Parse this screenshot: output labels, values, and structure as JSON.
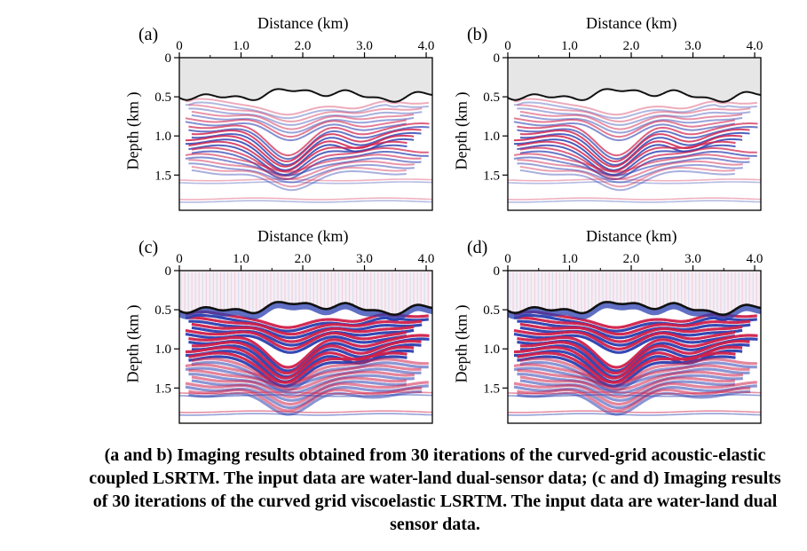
{
  "panels": [
    {
      "label": "(a)",
      "xlabel": "Distance (km)",
      "ylabel": "Depth (km )",
      "style": "acoustic"
    },
    {
      "label": "(b)",
      "xlabel": "Distance (km)",
      "ylabel": "Depth (km )",
      "style": "acoustic"
    },
    {
      "label": "(c)",
      "xlabel": "Distance (km)",
      "ylabel": "Depth (km )",
      "style": "visco"
    },
    {
      "label": "(d)",
      "xlabel": "Distance (km)",
      "ylabel": "Depth (km )",
      "style": "visco"
    }
  ],
  "xticks": [
    "0",
    "1.0",
    "2.0",
    "3.0",
    "4.0"
  ],
  "yticks": [
    "0",
    "0.5",
    "1.0",
    "1.5"
  ],
  "caption": "(a and b) Imaging results obtained from 30 iterations of the curved-grid acoustic-elastic coupled LSRTM. The input data are water-land dual-sensor data; (c and d) Imaging results of 30 iterations of the curved grid viscoelastic LSRTM. The input data are water-land dual sensor data.",
  "colors": {
    "positive": "#d0204a",
    "negative": "#2a3fb0",
    "seafloor": "#111111",
    "water": "#e6e6e6"
  }
}
